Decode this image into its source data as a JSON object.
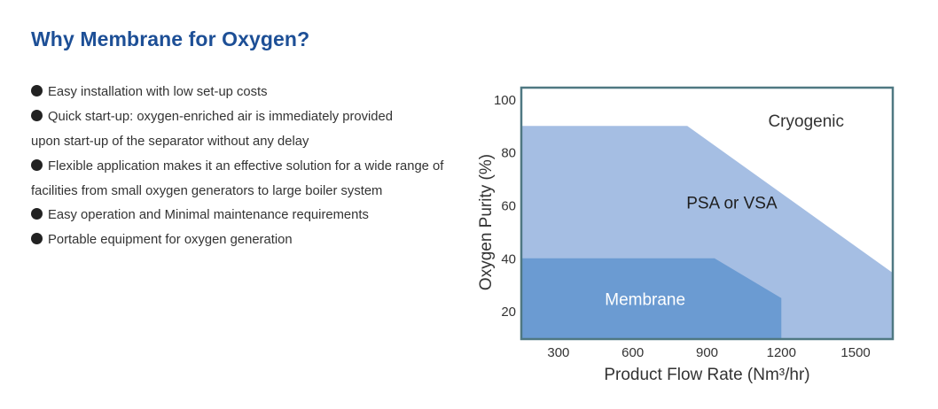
{
  "page": {
    "title": "Why Membrane for Oxygen?"
  },
  "bullets": {
    "lines": [
      {
        "bullet": true,
        "text": "Easy installation with low set-up costs"
      },
      {
        "bullet": true,
        "text": "Quick start-up: oxygen-enriched air is immediately provided"
      },
      {
        "bullet": false,
        "text": "upon start-up of the separator without any delay"
      },
      {
        "bullet": true,
        "text": "Flexible application makes it an effective solution for a wide range of"
      },
      {
        "bullet": false,
        "text": "facilities from small oxygen generators to large boiler system"
      },
      {
        "bullet": true,
        "text": "Easy operation and Minimal maintenance requirements"
      },
      {
        "bullet": true,
        "text": "Portable equipment for oxygen generation"
      }
    ]
  },
  "chart_data": {
    "type": "area",
    "xlabel": "Product Flow Rate (Nm³/hr)",
    "ylabel": "Oxygen Purity (%)",
    "xlim": [
      150,
      1650
    ],
    "ylim": [
      10,
      105
    ],
    "x_ticks": [
      300,
      600,
      900,
      1200,
      1500
    ],
    "y_ticks": [
      20,
      40,
      60,
      80,
      100
    ],
    "grid": false,
    "colors": {
      "frame": "#4f7882",
      "cryogenic_fill": "#ffffff",
      "psa_fill": "#a5bee3",
      "membrane_fill": "#6b9bd2",
      "cryogenic_text": "#333333",
      "psa_text": "#1f1f1f",
      "membrane_text": "#ffffff"
    },
    "regions": [
      {
        "label": "Cryogenic",
        "label_at": {
          "x": 1300,
          "y": 92
        },
        "points": []
      },
      {
        "label": "PSA or VSA",
        "label_at": {
          "x": 1000,
          "y": 61
        },
        "points": [
          [
            150,
            10
          ],
          [
            150,
            90.5
          ],
          [
            820,
            90.5
          ],
          [
            1650,
            35
          ],
          [
            1650,
            10
          ]
        ]
      },
      {
        "label": "Membrane",
        "label_at": {
          "x": 650,
          "y": 24.5
        },
        "points": [
          [
            150,
            10
          ],
          [
            150,
            40.5
          ],
          [
            930,
            40.5
          ],
          [
            1200,
            25.5
          ],
          [
            1200,
            10
          ]
        ]
      }
    ]
  }
}
